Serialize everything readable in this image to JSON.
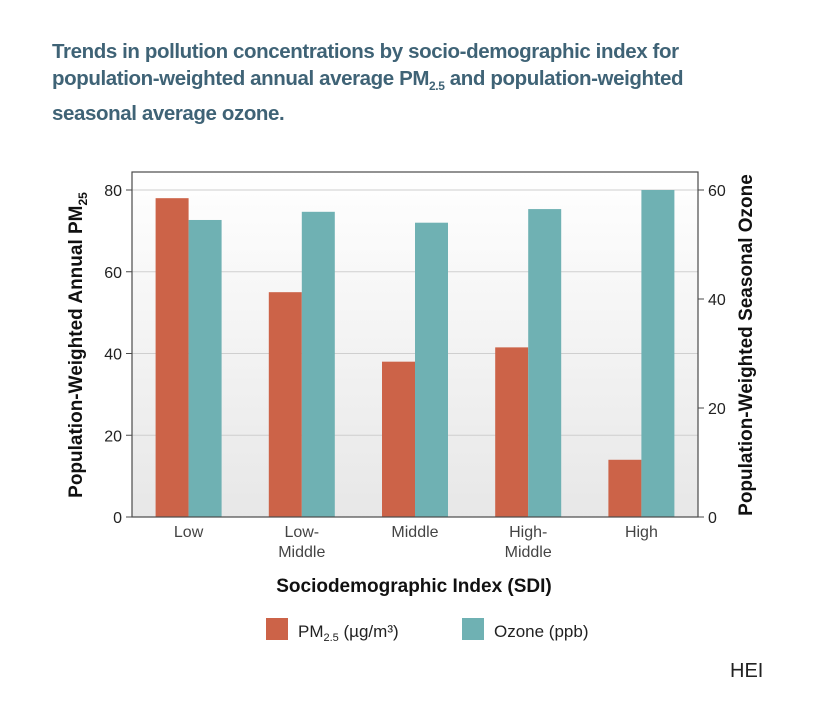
{
  "title": {
    "part1": "Trends in pollution concentrations by socio-demographic index for population-weighted annual average PM",
    "sub": "2.5",
    "part2": " and population-weighted seasonal average ozone."
  },
  "credit": "HEI",
  "chart_data": {
    "type": "bar",
    "categories": [
      [
        "Low"
      ],
      [
        "Low-",
        "Middle"
      ],
      [
        "Middle"
      ],
      [
        "High-",
        "Middle"
      ],
      [
        "High"
      ]
    ],
    "series": [
      {
        "name": "PM2.5 (µg/m³)",
        "legend": {
          "main": "PM",
          "sub": "2.5",
          "rest": " (µg/m³)"
        },
        "axis": "left",
        "color": "#cc6348",
        "values": [
          78,
          55,
          38,
          41.5,
          14
        ]
      },
      {
        "name": "Ozone (ppb)",
        "legend": {
          "main": "Ozone (ppb)",
          "sub": "",
          "rest": ""
        },
        "axis": "right",
        "color": "#6fb1b3",
        "values": [
          54.5,
          56,
          54,
          56.5,
          60
        ]
      }
    ],
    "xlabel": "Sociodemographic Index (SDI)",
    "ylabel_left": {
      "main": "Population-Weighted Annual PM",
      "sub": "25"
    },
    "ylabel_right": "Population-Weighted Seasonal Ozone",
    "ylim_left": [
      0,
      80
    ],
    "yticks_left": [
      "0",
      "20",
      "40",
      "60",
      "80"
    ],
    "ylim_right": [
      0,
      60
    ],
    "yticks_right": [
      "0",
      "20",
      "40",
      "60"
    ],
    "grid": true,
    "legend_position": "bottom"
  }
}
